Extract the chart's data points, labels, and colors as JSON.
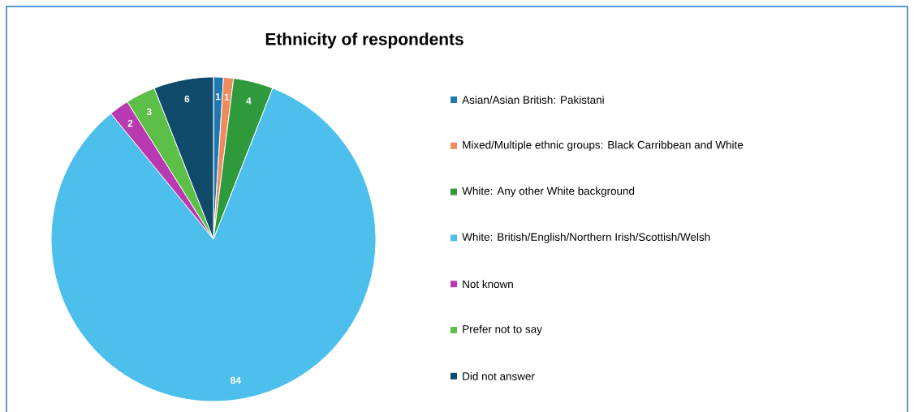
{
  "chart_data": {
    "type": "pie",
    "title": "Ethnicity of respondents",
    "categories": [
      "Asian/Asian British: Pakistani",
      "Mixed/Multiple ethnic groups: Black Carribbean and White",
      "White: Any other White background",
      "White: British/English/Northern Irish/Scottish/Welsh",
      "Not known",
      "Prefer not to say",
      "Did not answer"
    ],
    "values": [
      1,
      1,
      4,
      84,
      2,
      3,
      6
    ],
    "colors": [
      "#1f78b4",
      "#ee8a5c",
      "#2f9a3c",
      "#4dbfec",
      "#b93ab0",
      "#5cbf48",
      "#0f4a6b"
    ],
    "data_labels": true,
    "legend": "right"
  }
}
